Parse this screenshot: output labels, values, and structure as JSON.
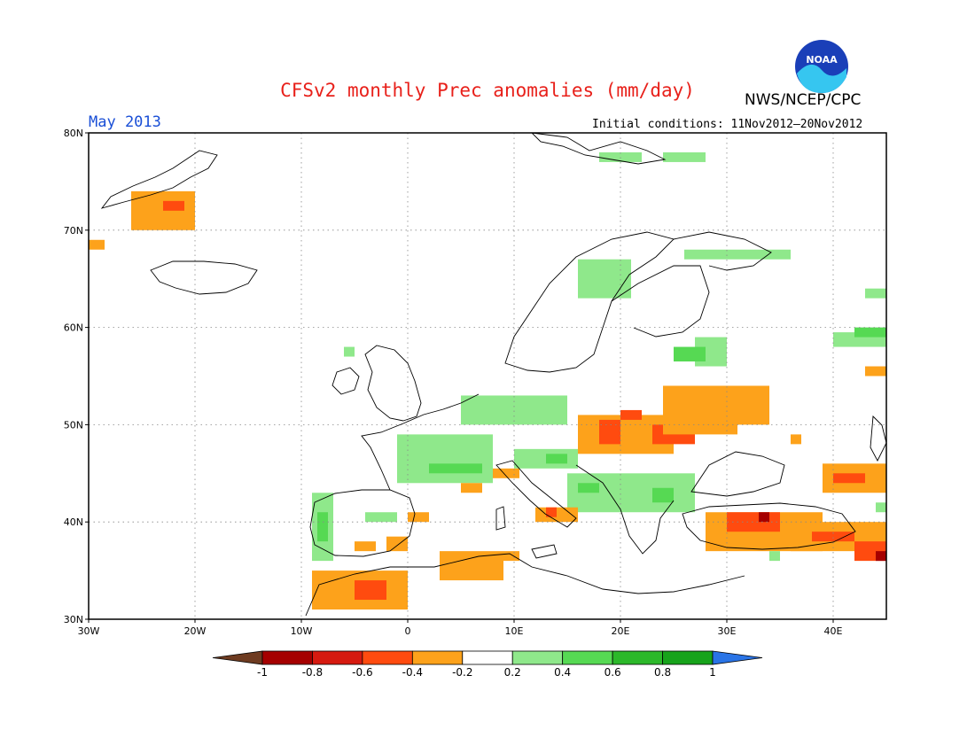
{
  "title": "CFSv2 monthly Prec anomalies (mm/day)",
  "agency": "NWS/NCEP/CPC",
  "logo_text": "NOAA",
  "period": "May 2013",
  "initial_conditions": "Initial conditions: 11Nov2012—20Nov2012",
  "map": {
    "lon_range": [
      -30,
      45
    ],
    "lat_range": [
      30,
      80
    ],
    "grid": "dotted",
    "lat_labels": [
      "80N",
      "70N",
      "60N",
      "50N",
      "40N",
      "30N"
    ],
    "lon_labels": [
      "30W",
      "20W",
      "10W",
      "0",
      "10E",
      "20E",
      "30E",
      "40E"
    ]
  },
  "colorbar": {
    "labels": [
      "-1",
      "-0.8",
      "-0.6",
      "-0.4",
      "-0.2",
      "0.2",
      "0.4",
      "0.6",
      "0.8",
      "1"
    ],
    "colors": {
      "lt_-1": "#6e3b21",
      "-1_-0.8": "#a50000",
      "-0.8_-0.6": "#d61a10",
      "-0.6_-0.4": "#ff4b0f",
      "-0.4_-0.2": "#fda21b",
      "-0.2_0.2": "#ffffff",
      "0.2_0.4": "#8fe88b",
      "0.4_0.6": "#56d953",
      "0.6_0.8": "#2cb82a",
      "0.8_1": "#17a31b",
      "gt_1": "#2a74e6"
    }
  },
  "anomaly_regions": [
    {
      "lon": [
        -30,
        -28.5
      ],
      "lat": [
        68,
        69
      ],
      "class": "-0.4_-0.2"
    },
    {
      "lon": [
        -26,
        -20
      ],
      "lat": [
        70,
        74
      ],
      "class": "-0.4_-0.2"
    },
    {
      "lon": [
        -23,
        -21
      ],
      "lat": [
        72,
        73
      ],
      "class": "-0.6_-0.4"
    },
    {
      "lon": [
        -6,
        -5
      ],
      "lat": [
        57,
        58
      ],
      "class": "0.2_0.4"
    },
    {
      "lon": [
        -9,
        -7
      ],
      "lat": [
        36,
        43
      ],
      "class": "0.2_0.4"
    },
    {
      "lon": [
        -8.5,
        -7.5
      ],
      "lat": [
        38,
        41
      ],
      "class": "0.4_0.6"
    },
    {
      "lon": [
        -4,
        -1
      ],
      "lat": [
        40,
        41
      ],
      "class": "0.2_0.4"
    },
    {
      "lon": [
        -5,
        -3
      ],
      "lat": [
        37,
        38
      ],
      "class": "-0.4_-0.2"
    },
    {
      "lon": [
        0,
        2
      ],
      "lat": [
        40,
        41
      ],
      "class": "-0.4_-0.2"
    },
    {
      "lon": [
        -2,
        0
      ],
      "lat": [
        37,
        38.5
      ],
      "class": "-0.4_-0.2"
    },
    {
      "lon": [
        -9,
        0
      ],
      "lat": [
        31,
        35
      ],
      "class": "-0.4_-0.2"
    },
    {
      "lon": [
        -5,
        -2
      ],
      "lat": [
        32,
        34
      ],
      "class": "-0.6_-0.4"
    },
    {
      "lon": [
        3,
        9
      ],
      "lat": [
        34,
        37
      ],
      "class": "-0.4_-0.2"
    },
    {
      "lon": [
        9,
        10.5
      ],
      "lat": [
        36,
        37
      ],
      "class": "-0.4_-0.2"
    },
    {
      "lon": [
        -1,
        8
      ],
      "lat": [
        44,
        49
      ],
      "class": "0.2_0.4"
    },
    {
      "lon": [
        2,
        7
      ],
      "lat": [
        45,
        46
      ],
      "class": "0.4_0.6"
    },
    {
      "lon": [
        5,
        15
      ],
      "lat": [
        50,
        53
      ],
      "class": "0.2_0.4"
    },
    {
      "lon": [
        10,
        16
      ],
      "lat": [
        45.5,
        47.5
      ],
      "class": "0.2_0.4"
    },
    {
      "lon": [
        13,
        15
      ],
      "lat": [
        46,
        47
      ],
      "class": "0.4_0.6"
    },
    {
      "lon": [
        15,
        27
      ],
      "lat": [
        41,
        45
      ],
      "class": "0.2_0.4"
    },
    {
      "lon": [
        16,
        18
      ],
      "lat": [
        43,
        44
      ],
      "class": "0.4_0.6"
    },
    {
      "lon": [
        23,
        25
      ],
      "lat": [
        42,
        43.5
      ],
      "class": "0.4_0.6"
    },
    {
      "lon": [
        8,
        10.5
      ],
      "lat": [
        44.5,
        45.5
      ],
      "class": "-0.4_-0.2"
    },
    {
      "lon": [
        5,
        7
      ],
      "lat": [
        43,
        44
      ],
      "class": "-0.4_-0.2"
    },
    {
      "lon": [
        12,
        16
      ],
      "lat": [
        40,
        41.5
      ],
      "class": "-0.4_-0.2"
    },
    {
      "lon": [
        13,
        14
      ],
      "lat": [
        40.5,
        41.5
      ],
      "class": "-0.6_-0.4"
    },
    {
      "lon": [
        16,
        25
      ],
      "lat": [
        47,
        51
      ],
      "class": "-0.4_-0.2"
    },
    {
      "lon": [
        18,
        20
      ],
      "lat": [
        48,
        50.5
      ],
      "class": "-0.6_-0.4"
    },
    {
      "lon": [
        20,
        22
      ],
      "lat": [
        50.5,
        51.5
      ],
      "class": "-0.6_-0.4"
    },
    {
      "lon": [
        23,
        27
      ],
      "lat": [
        48,
        50
      ],
      "class": "-0.6_-0.4"
    },
    {
      "lon": [
        24,
        31
      ],
      "lat": [
        49,
        54
      ],
      "class": "-0.4_-0.2"
    },
    {
      "lon": [
        31,
        34
      ],
      "lat": [
        50,
        54
      ],
      "class": "-0.4_-0.2"
    },
    {
      "lon": [
        36,
        37
      ],
      "lat": [
        48,
        49
      ],
      "class": "-0.4_-0.2"
    },
    {
      "lon": [
        27,
        30
      ],
      "lat": [
        56,
        59
      ],
      "class": "0.2_0.4"
    },
    {
      "lon": [
        25,
        28
      ],
      "lat": [
        56.5,
        58
      ],
      "class": "0.4_0.6"
    },
    {
      "lon": [
        16,
        21
      ],
      "lat": [
        63,
        67
      ],
      "class": "0.2_0.4"
    },
    {
      "lon": [
        26,
        36
      ],
      "lat": [
        67,
        68
      ],
      "class": "0.2_0.4"
    },
    {
      "lon": [
        18,
        22
      ],
      "lat": [
        77,
        78
      ],
      "class": "0.2_0.4"
    },
    {
      "lon": [
        24,
        28
      ],
      "lat": [
        77,
        78
      ],
      "class": "0.2_0.4"
    },
    {
      "lon": [
        40,
        45
      ],
      "lat": [
        58,
        59.5
      ],
      "class": "0.2_0.4"
    },
    {
      "lon": [
        42,
        45
      ],
      "lat": [
        59,
        60
      ],
      "class": "0.4_0.6"
    },
    {
      "lon": [
        43,
        45
      ],
      "lat": [
        63,
        64
      ],
      "class": "0.2_0.4"
    },
    {
      "lon": [
        43,
        45
      ],
      "lat": [
        55,
        56
      ],
      "class": "-0.4_-0.2"
    },
    {
      "lon": [
        28,
        39
      ],
      "lat": [
        37,
        41
      ],
      "class": "-0.4_-0.2"
    },
    {
      "lon": [
        30,
        35
      ],
      "lat": [
        39,
        41
      ],
      "class": "-0.6_-0.4"
    },
    {
      "lon": [
        33,
        34
      ],
      "lat": [
        40,
        41
      ],
      "class": "-1_-0.8"
    },
    {
      "lon": [
        36,
        45
      ],
      "lat": [
        37,
        40
      ],
      "class": "-0.4_-0.2"
    },
    {
      "lon": [
        38,
        42
      ],
      "lat": [
        38,
        39
      ],
      "class": "-0.6_-0.4"
    },
    {
      "lon": [
        39,
        45
      ],
      "lat": [
        43,
        46
      ],
      "class": "-0.4_-0.2"
    },
    {
      "lon": [
        40,
        43
      ],
      "lat": [
        44,
        45
      ],
      "class": "-0.6_-0.4"
    },
    {
      "lon": [
        42,
        45
      ],
      "lat": [
        36,
        38
      ],
      "class": "-0.6_-0.4"
    },
    {
      "lon": [
        44,
        45
      ],
      "lat": [
        36,
        37
      ],
      "class": "-1_-0.8"
    },
    {
      "lon": [
        44,
        45
      ],
      "lat": [
        41,
        42
      ],
      "class": "0.2_0.4"
    },
    {
      "lon": [
        34,
        35
      ],
      "lat": [
        36,
        37
      ],
      "class": "0.2_0.4"
    }
  ]
}
